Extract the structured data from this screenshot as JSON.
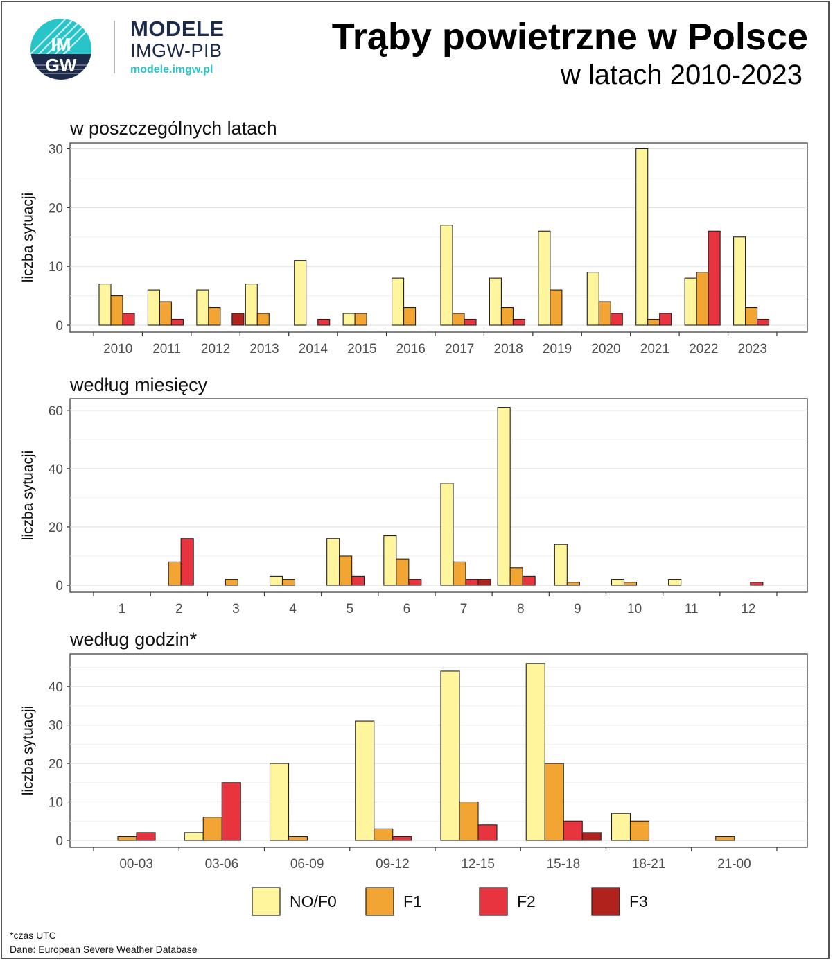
{
  "header": {
    "brand_line1": "MODELE",
    "brand_line2": "IMGW-PIB",
    "brand_url": "modele.imgw.pl",
    "logo_text_top": "IM",
    "logo_text_bottom": "GW",
    "title": "Trąby powietrzne w Polsce",
    "subtitle": "w latach 2010-2023"
  },
  "colors": {
    "NO/F0": "#fff59d",
    "F1": "#f3a533",
    "F2": "#e8343f",
    "F3": "#b2221d",
    "logo_teal": "#29c4c8",
    "logo_navy": "#1d2b4b"
  },
  "chart_data": [
    {
      "type": "bar",
      "title": "w poszczególnych latach",
      "ylabel": "liczba sytuacji",
      "ylim": [
        0,
        31
      ],
      "yticks": [
        0,
        10,
        20,
        30
      ],
      "categories": [
        "2010",
        "2011",
        "2012",
        "2013",
        "2014",
        "2015",
        "2016",
        "2017",
        "2018",
        "2019",
        "2020",
        "2021",
        "2022",
        "2023"
      ],
      "series": [
        {
          "name": "NO/F0",
          "values": [
            7,
            6,
            6,
            7,
            11,
            2,
            8,
            17,
            8,
            16,
            9,
            30,
            8,
            15
          ]
        },
        {
          "name": "F1",
          "values": [
            5,
            4,
            3,
            2,
            0,
            2,
            3,
            2,
            3,
            6,
            4,
            1,
            9,
            3
          ]
        },
        {
          "name": "F2",
          "values": [
            2,
            1,
            0,
            0,
            1,
            0,
            0,
            1,
            1,
            0,
            2,
            2,
            16,
            1
          ]
        },
        {
          "name": "F3",
          "values": [
            0,
            0,
            2,
            0,
            0,
            0,
            0,
            0,
            0,
            0,
            0,
            0,
            0,
            0
          ]
        }
      ]
    },
    {
      "type": "bar",
      "title": "według miesięcy",
      "ylabel": "liczba sytuacji",
      "ylim": [
        0,
        64
      ],
      "yticks": [
        0,
        20,
        40,
        60
      ],
      "categories": [
        "1",
        "2",
        "3",
        "4",
        "5",
        "6",
        "7",
        "8",
        "9",
        "10",
        "11",
        "12"
      ],
      "series": [
        {
          "name": "NO/F0",
          "values": [
            0,
            0,
            0,
            3,
            16,
            17,
            35,
            61,
            14,
            2,
            2,
            0
          ]
        },
        {
          "name": "F1",
          "values": [
            0,
            8,
            2,
            2,
            10,
            9,
            8,
            6,
            1,
            1,
            0,
            0
          ]
        },
        {
          "name": "F2",
          "values": [
            0,
            16,
            0,
            0,
            3,
            2,
            2,
            3,
            0,
            0,
            0,
            1
          ]
        },
        {
          "name": "F3",
          "values": [
            0,
            0,
            0,
            0,
            0,
            0,
            2,
            0,
            0,
            0,
            0,
            0
          ]
        }
      ]
    },
    {
      "type": "bar",
      "title": "według godzin*",
      "ylabel": "liczba sytuacji",
      "ylim": [
        0,
        48.5
      ],
      "yticks": [
        0,
        10,
        20,
        30,
        40
      ],
      "categories": [
        "00-03",
        "03-06",
        "06-09",
        "09-12",
        "12-15",
        "15-18",
        "18-21",
        "21-00"
      ],
      "series": [
        {
          "name": "NO/F0",
          "values": [
            0,
            2,
            20,
            31,
            44,
            46,
            7,
            0
          ]
        },
        {
          "name": "F1",
          "values": [
            1,
            6,
            1,
            3,
            10,
            20,
            5,
            1
          ]
        },
        {
          "name": "F2",
          "values": [
            2,
            15,
            0,
            1,
            4,
            5,
            0,
            0
          ]
        },
        {
          "name": "F3",
          "values": [
            0,
            0,
            0,
            0,
            0,
            2,
            0,
            0
          ]
        }
      ]
    }
  ],
  "legend": {
    "position": "bottom",
    "items": [
      {
        "label": "NO/F0",
        "color": "#fff59d"
      },
      {
        "label": "F1",
        "color": "#f3a533"
      },
      {
        "label": "F2",
        "color": "#e8343f"
      },
      {
        "label": "F3",
        "color": "#b2221d"
      }
    ]
  },
  "footer": {
    "note": "*czas UTC",
    "source": "Dane: European Severe Weather Database"
  }
}
